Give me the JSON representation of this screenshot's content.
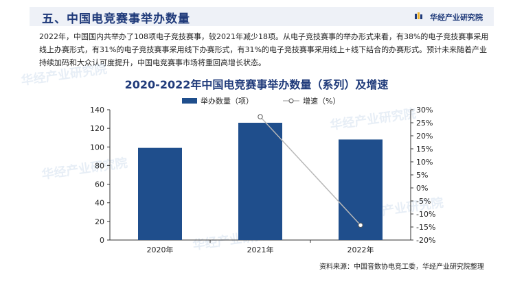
{
  "section_title": "五、中国电竞赛事举办数量",
  "brand": "华经产业研究院",
  "paragraph": "2022年，中国国内共举办了108项电子竞技赛事，较2021年减少18项。从电子竞技赛事的举办形式来看，有38%的电子竞技赛事采用线上办赛形式，有31%的电子竞技赛事采用线下办赛形式，有31%的电子竞技赛事采用线上+线下结合的办赛形式。预计未来随着产业持续加码和大众认可度提升，中国电竞赛事市场将重回高增长状态。",
  "watermark": "华经产业研究院",
  "source": "资料来源：中国音数协电竞工委，华经产业研究院整理",
  "colors": {
    "bar": "#1f4e8c",
    "line": "#b8b8b8",
    "title": "#1f3a7a"
  },
  "chart_data": {
    "type": "bar+line",
    "title": "2020-2022年中国电竞赛事举办数量（系列）及增速",
    "categories": [
      "2020年",
      "2021年",
      "2022年"
    ],
    "series": [
      {
        "name": "举办数量（项）",
        "type": "bar",
        "axis": "left",
        "values": [
          99,
          126,
          108
        ]
      },
      {
        "name": "增速（%）",
        "type": "line",
        "axis": "right",
        "values": [
          null,
          27.3,
          -14.3
        ]
      }
    ],
    "y_left": {
      "min": 0,
      "max": 140,
      "ticks": [
        0,
        20,
        40,
        60,
        80,
        100,
        120,
        140
      ]
    },
    "y_right": {
      "min": -20,
      "max": 30,
      "ticks": [
        "-20%",
        "-15%",
        "-10%",
        "-5%",
        "0%",
        "5%",
        "10%",
        "15%",
        "20%",
        "25%",
        "30%"
      ]
    },
    "legend_position": "top-center",
    "grid": false
  }
}
